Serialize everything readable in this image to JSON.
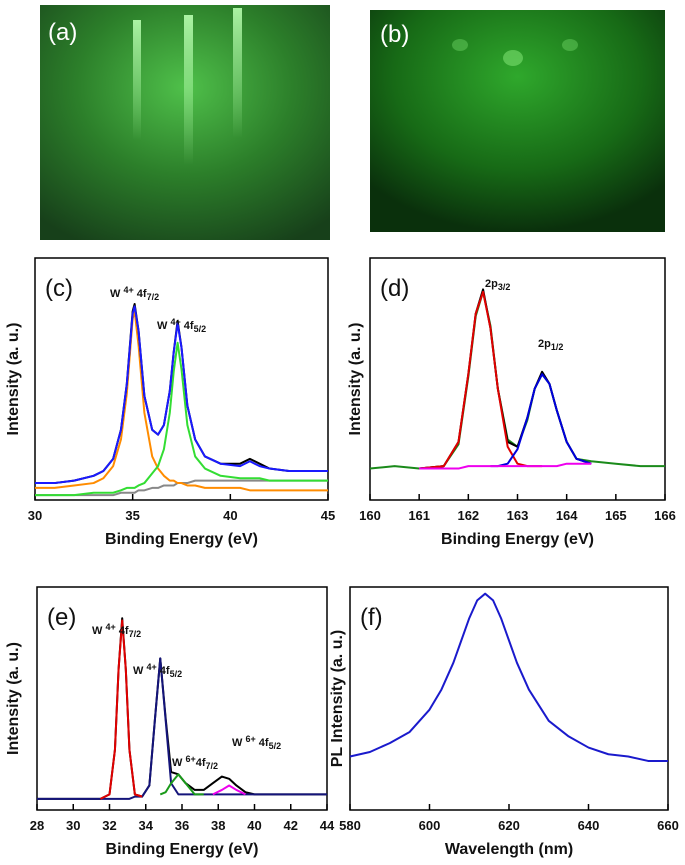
{
  "images": [
    {
      "label": "(a)"
    },
    {
      "label": "(b)"
    }
  ],
  "chart_data": [
    {
      "type": "line",
      "label": "(c)",
      "xlabel": "Binding Energy (eV)",
      "ylabel": "Intensity (a. u.)",
      "xlim": [
        30,
        45
      ],
      "xticks": [
        30,
        35,
        40,
        45
      ],
      "ylim": [
        0,
        1
      ],
      "x": [
        30,
        31,
        32,
        33,
        33.5,
        34,
        34.4,
        34.7,
        35,
        35.1,
        35.3,
        35.6,
        36,
        36.3,
        36.6,
        36.9,
        37.1,
        37.3,
        37.5,
        37.8,
        38.2,
        38.7,
        39.5,
        40.5,
        41,
        41.5,
        42,
        43,
        44,
        45
      ],
      "annotations": [
        {
          "base": "W ",
          "sup": "4+",
          "main": " 4f",
          "sub": "7/2"
        },
        {
          "base": "W ",
          "sup": "4+",
          "main": " 4f",
          "sub": "5/2"
        }
      ],
      "series": [
        {
          "color": "#888888",
          "values": [
            0.02,
            0.02,
            0.02,
            0.02,
            0.02,
            0.02,
            0.03,
            0.03,
            0.03,
            0.03,
            0.04,
            0.04,
            0.05,
            0.05,
            0.06,
            0.06,
            0.06,
            0.07,
            0.07,
            0.07,
            0.08,
            0.08,
            0.08,
            0.08,
            0.08,
            0.08,
            0.08,
            0.08,
            0.08,
            0.08
          ]
        },
        {
          "color": "#ff8c00",
          "values": [
            0.05,
            0.05,
            0.06,
            0.07,
            0.09,
            0.14,
            0.25,
            0.44,
            0.75,
            0.78,
            0.64,
            0.36,
            0.18,
            0.13,
            0.1,
            0.08,
            0.08,
            0.07,
            0.07,
            0.06,
            0.06,
            0.05,
            0.05,
            0.05,
            0.04,
            0.04,
            0.04,
            0.04,
            0.04,
            0.04
          ]
        },
        {
          "color": "#33dd33",
          "values": [
            0.02,
            0.02,
            0.02,
            0.03,
            0.03,
            0.03,
            0.04,
            0.05,
            0.05,
            0.05,
            0.06,
            0.07,
            0.11,
            0.14,
            0.21,
            0.36,
            0.53,
            0.65,
            0.54,
            0.31,
            0.18,
            0.13,
            0.1,
            0.09,
            0.09,
            0.09,
            0.08,
            0.08,
            0.08,
            0.08
          ]
        },
        {
          "color": "#000000",
          "values": [
            0.07,
            0.07,
            0.08,
            0.1,
            0.12,
            0.17,
            0.29,
            0.48,
            0.78,
            0.81,
            0.7,
            0.43,
            0.29,
            0.27,
            0.31,
            0.45,
            0.61,
            0.74,
            0.63,
            0.39,
            0.25,
            0.18,
            0.15,
            0.15,
            0.17,
            0.15,
            0.13,
            0.12,
            0.12,
            0.12
          ]
        },
        {
          "color": "#1a1aff",
          "values": [
            0.07,
            0.07,
            0.08,
            0.1,
            0.12,
            0.17,
            0.29,
            0.48,
            0.77,
            0.8,
            0.7,
            0.43,
            0.29,
            0.27,
            0.31,
            0.45,
            0.61,
            0.73,
            0.63,
            0.39,
            0.25,
            0.18,
            0.15,
            0.14,
            0.16,
            0.14,
            0.13,
            0.12,
            0.12,
            0.12
          ]
        }
      ]
    },
    {
      "type": "line",
      "label": "(d)",
      "xlabel": "Binding Energy (eV)",
      "ylabel": "Intensity (a. u.)",
      "xlim": [
        160,
        166
      ],
      "xticks": [
        160,
        161,
        162,
        163,
        164,
        165,
        166
      ],
      "ylim": [
        0,
        1
      ],
      "x": [
        160,
        160.5,
        161,
        161.5,
        161.8,
        162,
        162.15,
        162.3,
        162.45,
        162.6,
        162.8,
        163,
        163.2,
        163.35,
        163.5,
        163.65,
        163.8,
        164,
        164.2,
        164.5,
        165,
        165.5,
        166
      ],
      "annotations": [
        {
          "main": "2p",
          "sub": "3/2"
        },
        {
          "main": "2p",
          "sub": "1/2"
        }
      ],
      "series": [
        {
          "color": "#1a8a1a",
          "values": [
            0.13,
            0.14,
            0.13,
            0.14,
            0.23,
            0.51,
            0.76,
            0.86,
            0.72,
            0.46,
            0.25,
            0.22,
            0.33,
            0.46,
            0.52,
            0.48,
            0.37,
            0.24,
            0.17,
            0.16,
            0.15,
            0.14,
            0.14
          ]
        },
        {
          "color": "#000000",
          "values": [
            null,
            null,
            0.13,
            0.14,
            0.24,
            0.52,
            0.77,
            0.87,
            0.71,
            0.46,
            0.24,
            0.22,
            0.34,
            0.46,
            0.53,
            0.48,
            0.37,
            0.24,
            0.17,
            0.15,
            null,
            null,
            null
          ]
        },
        {
          "color": "#e00000",
          "values": [
            null,
            null,
            0.13,
            0.14,
            0.24,
            0.52,
            0.77,
            0.86,
            0.71,
            0.46,
            0.22,
            0.15,
            0.14,
            0.14,
            0.14,
            null,
            null,
            null,
            null,
            null,
            null,
            null,
            null
          ]
        },
        {
          "color": "#0000dd",
          "values": [
            null,
            null,
            null,
            null,
            null,
            null,
            null,
            null,
            0.14,
            0.14,
            0.15,
            0.21,
            0.34,
            0.46,
            0.52,
            0.48,
            0.37,
            0.24,
            0.17,
            0.15,
            null,
            null,
            null
          ]
        },
        {
          "color": "#ee00ee",
          "values": [
            null,
            null,
            0.13,
            0.13,
            0.13,
            0.14,
            0.14,
            0.14,
            0.14,
            0.14,
            0.14,
            0.14,
            0.14,
            0.14,
            0.14,
            0.14,
            0.14,
            0.15,
            0.15,
            0.15,
            null,
            null,
            null
          ]
        }
      ]
    },
    {
      "type": "line",
      "label": "(e)",
      "xlabel": "Binding Energy (eV)",
      "ylabel": "Intensity (a. u.)",
      "xlim": [
        28,
        44
      ],
      "xticks": [
        28,
        30,
        32,
        34,
        36,
        38,
        40,
        42,
        44
      ],
      "ylim": [
        0,
        1
      ],
      "x": [
        28,
        29,
        30,
        31,
        31.5,
        32,
        32.3,
        32.5,
        32.7,
        32.9,
        33.1,
        33.4,
        33.8,
        34.2,
        34.5,
        34.8,
        35.1,
        35.4,
        35.8,
        36.2,
        36.7,
        37.2,
        37.7,
        38.2,
        38.6,
        39,
        39.5,
        40,
        41,
        42,
        43,
        44
      ],
      "annotations": [
        {
          "base": "W ",
          "sup": "4+",
          "main": " 4f",
          "sub": "7/2"
        },
        {
          "base": "W ",
          "sup": "4+",
          "main": " 4f",
          "sub": "5/2"
        },
        {
          "base": "W ",
          "sup": "6+",
          "main": "4f",
          "sub": "7/2"
        },
        {
          "base": "W ",
          "sup": "6+",
          "main": " 4f",
          "sub": "5/2"
        }
      ],
      "series": [
        {
          "color": "#000000",
          "values": [
            0.05,
            0.05,
            0.05,
            0.05,
            0.05,
            0.07,
            0.27,
            0.63,
            0.86,
            0.63,
            0.27,
            0.07,
            0.06,
            0.11,
            0.4,
            0.68,
            0.41,
            0.17,
            0.16,
            0.12,
            0.09,
            0.09,
            0.12,
            0.15,
            0.14,
            0.11,
            0.08,
            0.07,
            0.07,
            0.07,
            0.07,
            0.07
          ]
        },
        {
          "color": "#14147a",
          "values": [
            0.05,
            0.05,
            0.05,
            0.05,
            0.05,
            0.05,
            0.05,
            0.05,
            0.05,
            0.05,
            0.05,
            0.06,
            0.06,
            0.11,
            0.4,
            0.68,
            0.4,
            0.12,
            0.07,
            0.07,
            0.07,
            0.07,
            0.07,
            0.07,
            0.07,
            0.07,
            0.07,
            0.07,
            0.07,
            0.07,
            0.07,
            0.07
          ]
        },
        {
          "color": "#e00000",
          "values": [
            null,
            null,
            null,
            null,
            0.05,
            0.07,
            0.27,
            0.63,
            0.85,
            0.63,
            0.27,
            0.07,
            0.06,
            null,
            null,
            null,
            null,
            null,
            null,
            null,
            null,
            null,
            null,
            null,
            null,
            null,
            null,
            null,
            null,
            null,
            null,
            null
          ]
        },
        {
          "color": "#1a9a1a",
          "values": [
            null,
            null,
            null,
            null,
            null,
            null,
            null,
            null,
            null,
            null,
            null,
            null,
            null,
            null,
            null,
            0.07,
            0.08,
            0.12,
            0.16,
            0.12,
            0.07,
            0.07,
            null,
            null,
            null,
            null,
            null,
            null,
            null,
            null,
            null,
            null
          ]
        },
        {
          "color": "#ee00ee",
          "values": [
            null,
            null,
            null,
            null,
            null,
            null,
            null,
            null,
            null,
            null,
            null,
            null,
            null,
            null,
            null,
            null,
            null,
            null,
            null,
            null,
            null,
            null,
            0.07,
            0.09,
            0.11,
            0.09,
            0.07,
            null,
            null,
            null,
            null,
            null
          ]
        }
      ]
    },
    {
      "type": "line",
      "label": "(f)",
      "xlabel": "Wavelength (nm)",
      "ylabel": "PL Intensity (a. u.)",
      "xlim": [
        580,
        660
      ],
      "xticks": [
        580,
        600,
        620,
        640,
        660
      ],
      "ylim": [
        0,
        1
      ],
      "x": [
        580,
        585,
        590,
        595,
        600,
        603,
        606,
        608,
        610,
        612,
        614,
        616,
        618,
        620,
        622,
        625,
        630,
        635,
        640,
        645,
        650,
        655,
        660
      ],
      "annotations": [],
      "series": [
        {
          "color": "#1a1acc",
          "values": [
            0.24,
            0.26,
            0.3,
            0.35,
            0.45,
            0.54,
            0.66,
            0.76,
            0.86,
            0.94,
            0.97,
            0.94,
            0.86,
            0.76,
            0.66,
            0.54,
            0.4,
            0.33,
            0.28,
            0.25,
            0.24,
            0.22,
            0.22
          ]
        }
      ]
    }
  ]
}
